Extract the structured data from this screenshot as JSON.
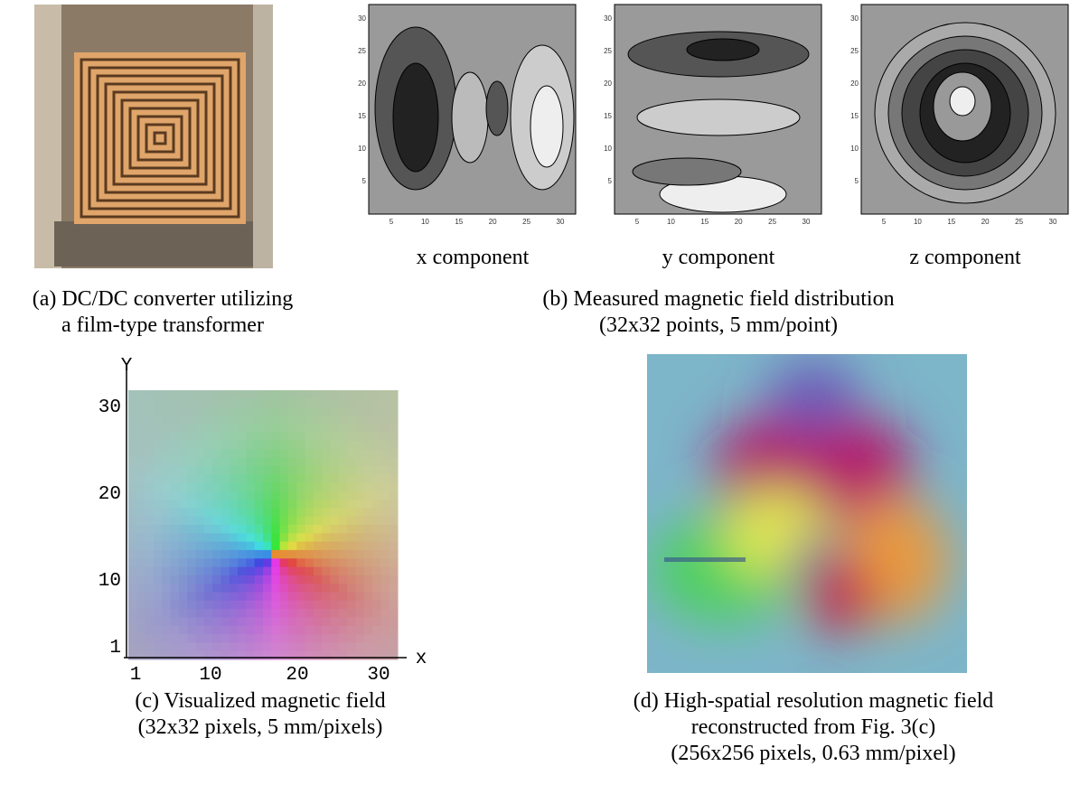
{
  "panel_a": {
    "caption": [
      "(a) DC/DC converter utilizing",
      "a film-type transformer"
    ]
  },
  "panel_b": {
    "plots": [
      {
        "label": "x component",
        "xticks": [
          5,
          10,
          15,
          20,
          25,
          30
        ],
        "yticks": [
          5,
          10,
          15,
          20,
          25,
          30
        ]
      },
      {
        "label": "y component",
        "xticks": [
          5,
          10,
          15,
          20,
          25,
          30
        ],
        "yticks": [
          5,
          10,
          15,
          20,
          25,
          30
        ]
      },
      {
        "label": "z component",
        "xticks": [
          5,
          10,
          15,
          20,
          25,
          30
        ],
        "yticks": [
          5,
          10,
          15,
          20,
          25,
          30
        ]
      }
    ],
    "caption": [
      "(b) Measured magnetic field distribution",
      "(32x32 points, 5 mm/point)"
    ]
  },
  "panel_c": {
    "xlabel": "x",
    "ylabel": "Y",
    "xticks": [
      1,
      10,
      20,
      30
    ],
    "yticks": [
      1,
      10,
      20,
      30
    ],
    "caption": [
      "(c) Visualized magnetic field",
      "(32x32 pixels, 5 mm/pixels)"
    ]
  },
  "panel_d": {
    "caption": [
      "(d) High-spatial resolution magnetic field",
      "reconstructed from Fig. 3(c)",
      "(256x256 pixels, 0.63 mm/pixel)"
    ]
  }
}
